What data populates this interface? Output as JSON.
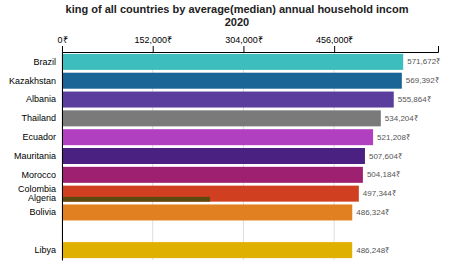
{
  "chart_data": {
    "type": "bar",
    "orientation": "horizontal",
    "title": "king of all countries by average(median) annual household incom\n2020",
    "categories": [
      "Brazil",
      "Kazakhstan",
      "Albania",
      "Thailand",
      "Ecuador",
      "Mauritania",
      "Morocco",
      "Colombia\nAlgeria",
      "Bolivia",
      null,
      "Libya"
    ],
    "series": [
      {
        "values": [
          571672,
          569392,
          555864,
          534204,
          521208,
          507604,
          504184,
          497344,
          486324,
          null,
          486248
        ],
        "colors": [
          "#3dbdbd",
          "#1a6496",
          "#5b3d9e",
          "#7a7a7a",
          "#b040c0",
          "#4a2080",
          "#9e2070",
          "#d04020",
          "#e08020",
          null,
          "#e0b000"
        ],
        "value_labels": [
          "571,672₹",
          "569,392₹",
          "555,864₹",
          "534,204₹",
          "521,208₹",
          "507,604₹",
          "504,184₹",
          "497,344₹",
          "486,324₹",
          null,
          "486,248₹"
        ]
      },
      {
        "values": [
          null,
          null,
          null,
          null,
          null,
          null,
          null,
          248000,
          null,
          null,
          null
        ],
        "color": "#5a4a10"
      }
    ],
    "xlim": [
      0,
      630000
    ],
    "xticks": [
      {
        "value": 0,
        "label": "0₹"
      },
      {
        "value": 152000,
        "label": "152,000₹"
      },
      {
        "value": 304000,
        "label": "304,000₹"
      },
      {
        "value": 456000,
        "label": "456,000₹"
      }
    ],
    "grid": true,
    "data_labels": true
  }
}
